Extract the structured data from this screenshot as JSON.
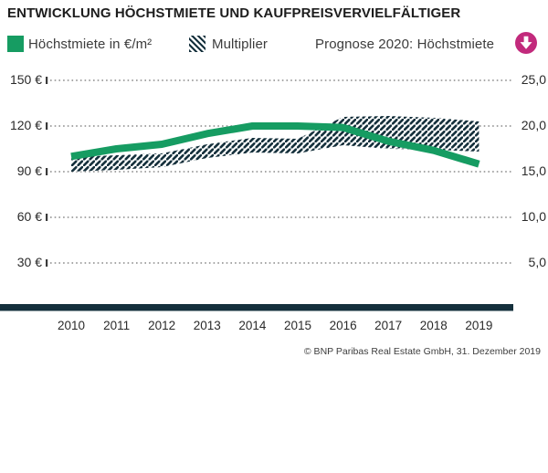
{
  "title": "ENTWICKLUNG HÖCHSTMIETE UND KAUFPREISVERVIELFÄLTIGER",
  "legend": {
    "rent_label": "Höchstmiete in €/m²",
    "multiplier_label": "Multiplier",
    "prognose_label": "Prognose 2020: Höchstmiete",
    "prognose_direction": "down"
  },
  "footer": "© BNP Paribas Real Estate GmbH, 31. Dezember 2019",
  "colors": {
    "rent_green": "#169c62",
    "hatch_dark": "#15303c",
    "prognose_magenta": "#c22a7c",
    "gridline_gray": "#9b9b9b"
  },
  "chart_data": {
    "type": "line",
    "title": "ENTWICKLUNG HÖCHSTMIETE UND KAUFPREISVERVIELFÄLTIGER",
    "categories": [
      "2010",
      "2011",
      "2012",
      "2013",
      "2014",
      "2015",
      "2016",
      "2017",
      "2018",
      "2019"
    ],
    "grid": "dotted-horizontal",
    "legend_position": "top",
    "left_axis": {
      "unit": "€/m²",
      "tick_labels": [
        "150 €",
        "120 €",
        "90 €",
        "60 €",
        "30 €"
      ],
      "tick_values": [
        150,
        120,
        90,
        60,
        30
      ],
      "range": [
        0,
        165
      ]
    },
    "right_axis": {
      "unit": "multiplier",
      "tick_labels": [
        "25,0",
        "20,0",
        "15,0",
        "10,0",
        "5,0"
      ],
      "tick_values": [
        25,
        20,
        15,
        10,
        5
      ],
      "range": [
        0,
        27.5
      ]
    },
    "series": [
      {
        "name": "Höchstmiete in €/m²",
        "render": "thick-line",
        "axis": "left",
        "color": "#169c62",
        "values": [
          100,
          105,
          108,
          115,
          120,
          120,
          119,
          110,
          104,
          95
        ]
      },
      {
        "name": "Multiplier",
        "render": "hatched-range-band",
        "axis": "right",
        "pattern": "diagonal-hatch",
        "color": "#15303c",
        "values_min": [
          15.0,
          15.2,
          15.5,
          16.5,
          17.1,
          17.0,
          17.9,
          17.5,
          17.4,
          17.2
        ],
        "values_max": [
          16.6,
          16.8,
          17.0,
          18.0,
          18.7,
          18.6,
          21.0,
          21.1,
          20.9,
          20.5
        ]
      }
    ]
  }
}
